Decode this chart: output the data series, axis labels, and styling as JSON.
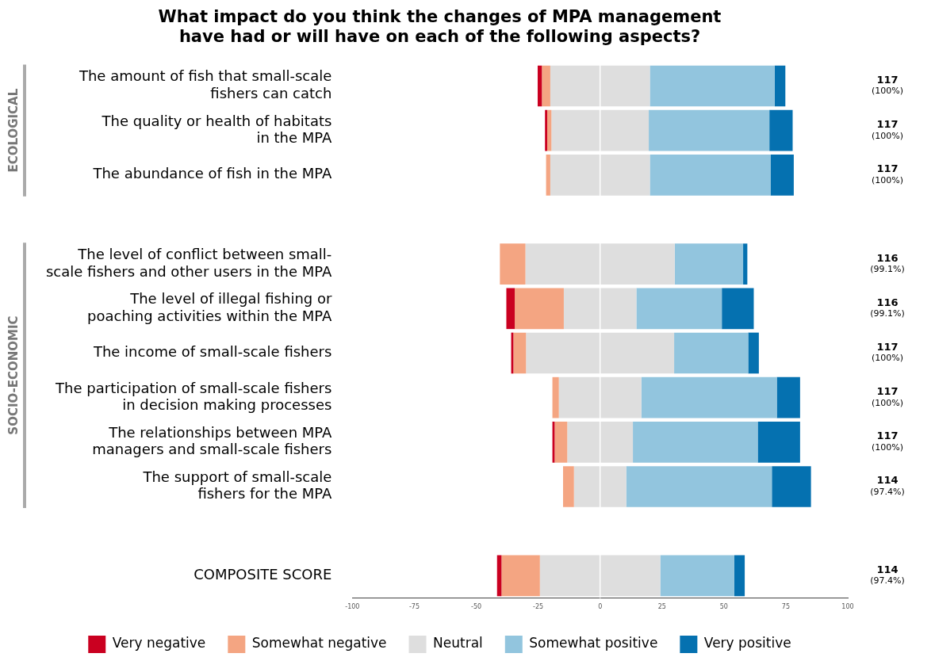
{
  "chart_data": {
    "type": "bar",
    "orientation": "horizontal",
    "title": "What impact do you think the changes of MPA management\nhave had or will have on each of the following aspects?",
    "categories": [
      "The amount of fish that small-scale\nfishers can catch",
      "The quality or health of habitats\nin the MPA",
      "The abundance of fish in the MPA",
      null,
      "The level of conflict between small-\nscale fishers and other users in the MPA",
      "The level of illegal fishing or\npoaching activities within the MPA",
      "The income of small-scale fishers",
      "The participation of small-scale fishers\nin decision making processes",
      "The relationships between MPA\nmanagers and small-scale fishers",
      "The support of small-scale\nfishers for the MPA",
      null,
      "COMPOSITE SCORE"
    ],
    "series": [
      {
        "name": "Very negative",
        "color": "#ca0020",
        "values": [
          1.7,
          0.9,
          null,
          null,
          null,
          3.4,
          0.9,
          null,
          0.9,
          null,
          null,
          1.8
        ],
        "base": [
          -25.2,
          -22.25,
          null,
          null,
          null,
          -37.85,
          -35.9,
          null,
          -19.25,
          null,
          null,
          -41.6
        ]
      },
      {
        "name": "Somewhat negative",
        "color": "#f4a582",
        "values": [
          3.4,
          1.7,
          1.7,
          null,
          10.3,
          19.8,
          5.1,
          2.6,
          5.1,
          4.4,
          null,
          15.5
        ],
        "base": [
          -23.5,
          -21.35,
          -21.8,
          null,
          -40.45,
          -34.45,
          -35.0,
          -19.25,
          -18.35,
          -14.95,
          null,
          -39.8
        ]
      },
      {
        "name": "Neutral",
        "color": "#dedede",
        "values": [
          40.2,
          39.3,
          40.2,
          null,
          60.3,
          29.3,
          59.8,
          33.3,
          26.5,
          21.1,
          null,
          48.6
        ],
        "base": [
          -20.1,
          -19.65,
          -20.1,
          null,
          -30.15,
          -14.65,
          -29.9,
          -16.65,
          -13.25,
          -10.55,
          null,
          -24.3
        ]
      },
      {
        "name": "Somewhat positive",
        "color": "#92c5de",
        "values": [
          50.4,
          48.7,
          48.7,
          null,
          27.6,
          34.5,
          29.9,
          54.7,
          50.4,
          58.8,
          null,
          29.9
        ],
        "base": [
          20.1,
          19.65,
          20.1,
          null,
          30.15,
          14.65,
          29.9,
          16.65,
          13.25,
          10.55,
          null,
          24.3
        ]
      },
      {
        "name": "Very positive",
        "color": "#0571b0",
        "values": [
          4.3,
          9.4,
          9.4,
          null,
          1.7,
          12.9,
          4.3,
          9.4,
          17.1,
          15.8,
          null,
          4.2
        ],
        "base": [
          70.5,
          68.35,
          68.8,
          null,
          57.75,
          49.15,
          59.8,
          71.35,
          63.65,
          69.35,
          null,
          54.2
        ]
      }
    ],
    "xlim": [
      -100,
      100
    ],
    "xticks": [
      -100,
      -75,
      -50,
      -25,
      0,
      25,
      50,
      75,
      100
    ],
    "ref_lines": [
      {
        "axis": "x",
        "value": 0,
        "color": "#ffffff"
      }
    ],
    "annotations": [
      "117\n(100%)",
      "117\n(100%)",
      "117\n(100%)",
      "116\n(99.1%)",
      "116\n(99.1%)",
      "117\n(100%)",
      "117\n(100%)",
      "117\n(100%)",
      "114\n(97.4%)",
      "114\n(97.4%)",
      "ECOLOGICAL",
      "SOCIO-ECONOMIC"
    ],
    "grid": false,
    "legend": "bottom"
  }
}
